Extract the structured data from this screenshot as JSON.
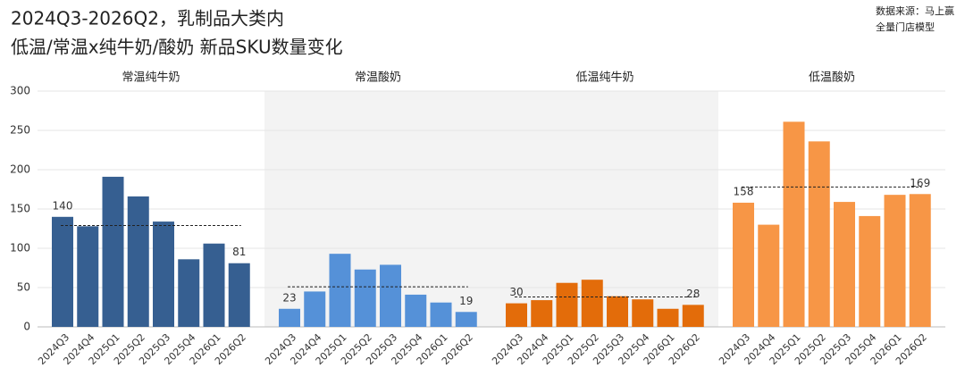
{
  "chart_data": {
    "type": "bar",
    "title": "2024Q3-2026Q2，乳制品大类内",
    "subtitle": "低温/常温x纯牛奶/酸奶 新品SKU数量变化",
    "source": [
      "数据来源：马上赢",
      "全量门店模型"
    ],
    "categories": [
      "2024Q3",
      "2024Q4",
      "2025Q1",
      "2025Q2",
      "2025Q3",
      "2025Q4",
      "2026Q1",
      "2026Q2"
    ],
    "series": [
      {
        "name": "常温纯牛奶",
        "color": "#365f91",
        "values": [
          140,
          128,
          191,
          166,
          134,
          86,
          106,
          81
        ],
        "average": 129
      },
      {
        "name": "常温酸奶",
        "color": "#5591d8",
        "values": [
          23,
          45,
          93,
          73,
          79,
          41,
          31,
          19
        ],
        "average": 51
      },
      {
        "name": "低温纯牛奶",
        "color": "#e36c0a",
        "values": [
          30,
          34,
          56,
          60,
          39,
          35,
          23,
          28
        ],
        "average": 38
      },
      {
        "name": "低温酸奶",
        "color": "#f79646",
        "values": [
          158,
          130,
          261,
          236,
          159,
          141,
          168,
          169
        ],
        "average": 178
      }
    ],
    "ylim": [
      0,
      300
    ],
    "yticks": [
      0,
      50,
      100,
      150,
      200,
      250,
      300
    ],
    "grid": true
  }
}
